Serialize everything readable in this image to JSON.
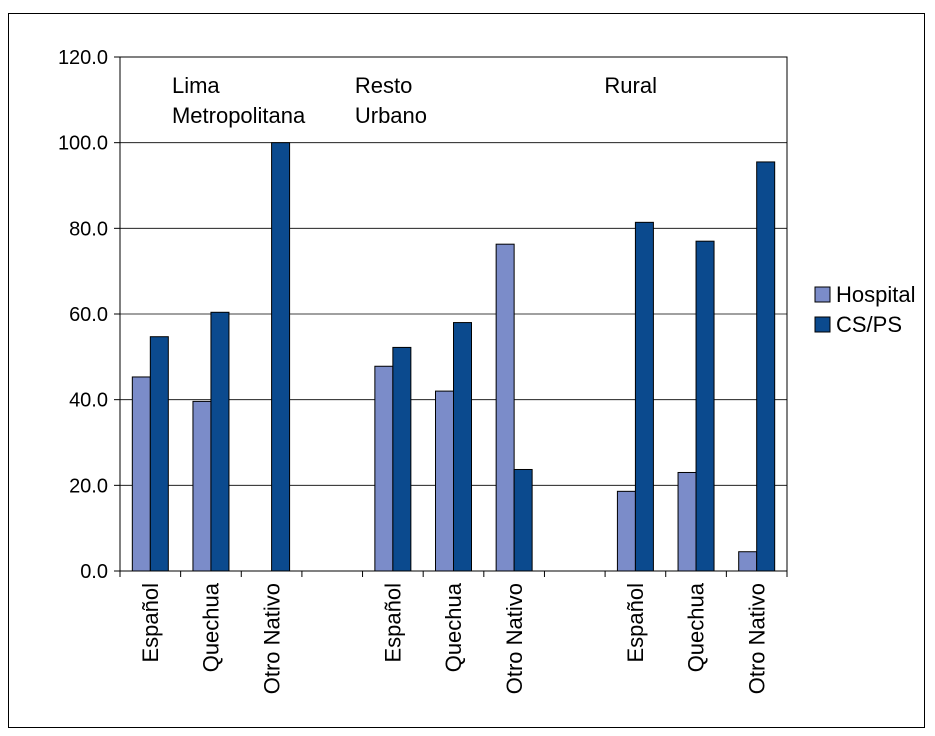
{
  "chart_data": {
    "type": "bar",
    "categories": [
      "Español",
      "Quechua",
      "Otro Nativo",
      "",
      "Español",
      "Quechua",
      "Otro Nativo",
      "",
      "Español",
      "Quechua",
      "Otro Nativo"
    ],
    "series": [
      {
        "name": "Hospital",
        "color": "#7B8CC9",
        "values": [
          45.3,
          39.6,
          0,
          null,
          47.8,
          42.0,
          76.3,
          null,
          18.6,
          23.0,
          4.5
        ]
      },
      {
        "name": "CS/PS",
        "color": "#0B4A8E",
        "values": [
          54.7,
          60.4,
          100.0,
          null,
          52.2,
          58.0,
          23.7,
          null,
          81.4,
          77.0,
          95.5
        ]
      }
    ],
    "ylim": [
      0,
      120
    ],
    "yticks": [
      "0.0",
      "20.0",
      "40.0",
      "60.0",
      "80.0",
      "100.0",
      "120.0"
    ],
    "group_labels": [
      {
        "lines": [
          "Lima",
          "Metropolitana"
        ]
      },
      {
        "lines": [
          "Resto",
          "Urbano"
        ]
      },
      {
        "lines": [
          "Rural"
        ]
      }
    ],
    "grid": true,
    "legend_position": "right"
  }
}
